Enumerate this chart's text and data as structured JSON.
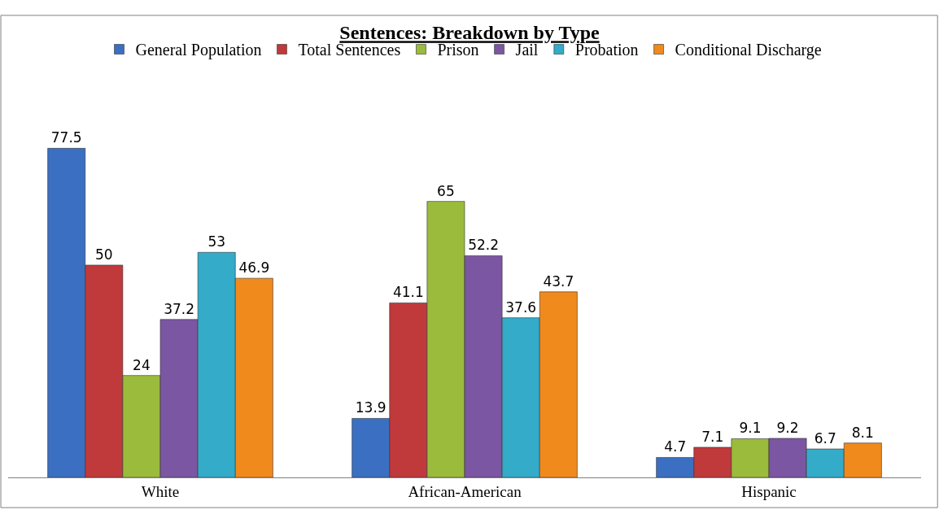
{
  "chart_data": {
    "type": "bar",
    "title": "Sentences: Breakdown by Type",
    "categories": [
      "White",
      "African-American",
      "Hispanic"
    ],
    "series": [
      {
        "name": "General Population",
        "color": "#3b6fc1",
        "values": [
          77.5,
          13.9,
          4.7
        ]
      },
      {
        "name": "Total Sentences",
        "color": "#c0393b",
        "values": [
          50,
          41.1,
          7.1
        ]
      },
      {
        "name": "Prison",
        "color": "#9bbb3c",
        "values": [
          24,
          65,
          9.1
        ]
      },
      {
        "name": "Jail",
        "color": "#7b56a2",
        "values": [
          37.2,
          52.2,
          9.2
        ]
      },
      {
        "name": "Probation",
        "color": "#33abc9",
        "values": [
          53,
          37.6,
          6.7
        ]
      },
      {
        "name": "Conditional Discharge",
        "color": "#f08a1d",
        "values": [
          46.9,
          43.7,
          8.1
        ]
      }
    ],
    "data_labels": true,
    "legend": "top"
  }
}
